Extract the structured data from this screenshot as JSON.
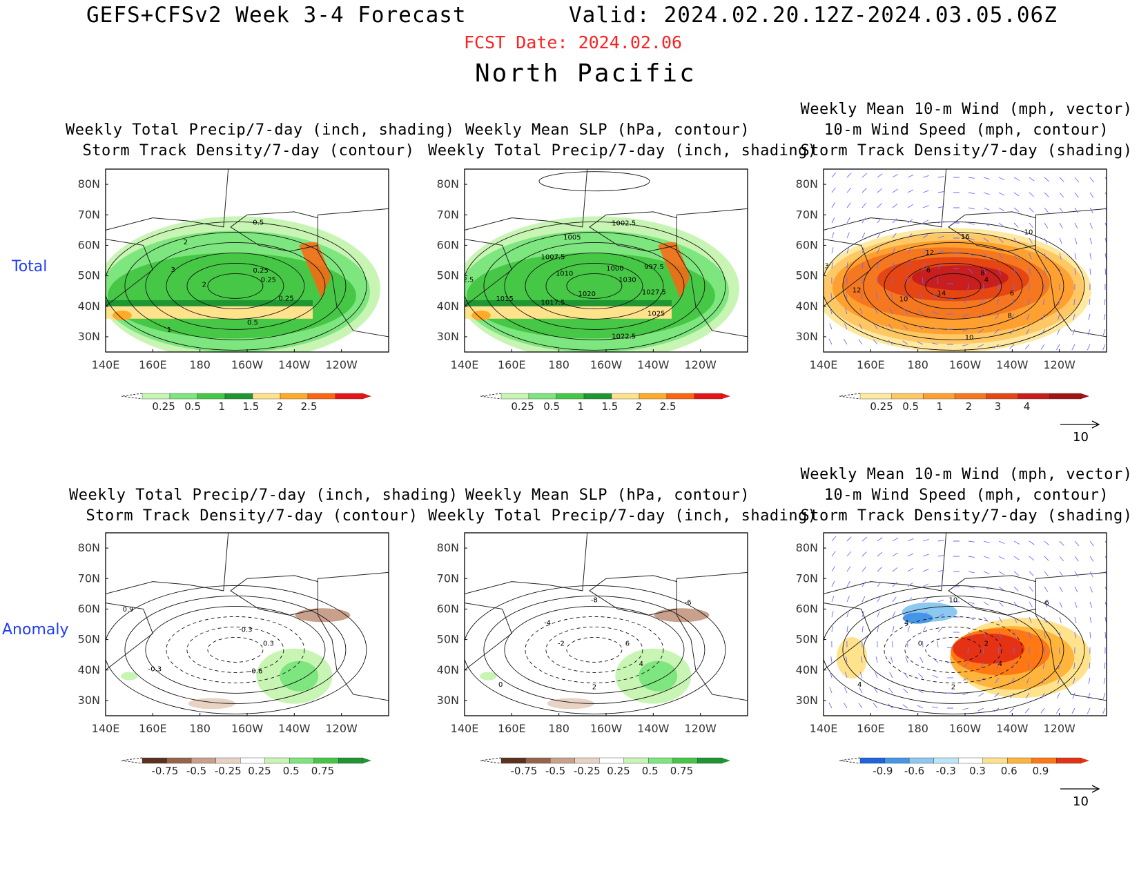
{
  "header": {
    "title": "GEFS+CFSv2 Week 3-4 Forecast",
    "valid": "Valid: 2024.02.20.12Z-2024.03.05.06Z",
    "fcst_date": "FCST Date: 2024.02.06",
    "region": "North Pacific"
  },
  "row_labels": {
    "total": "Total",
    "anomaly": "Anomaly"
  },
  "panels": {
    "t1": {
      "line1": "Weekly Total Precip/7-day (inch, shading)",
      "line2": "Storm Track Density/7-day (contour)"
    },
    "t2": {
      "line1": "Weekly Mean SLP (hPa, contour)",
      "line2": "Weekly Total Precip/7-day (inch, shading)"
    },
    "t3": {
      "line0": "Weekly Mean 10-m Wind (mph, vector)",
      "line1": "10-m Wind Speed (mph, contour)",
      "line2": "Storm Track Density/7-day (shading)"
    },
    "a1": {
      "line1": "Weekly Total Precip/7-day (inch, shading)",
      "line2": "Storm Track Density/7-day (contour)"
    },
    "a2": {
      "line1": "Weekly Mean SLP (hPa, contour)",
      "line2": "Weekly Total Precip/7-day (inch, shading)"
    },
    "a3": {
      "line0": "Weekly Mean 10-m Wind (mph, vector)",
      "line1": "10-m Wind Speed (mph, contour)",
      "line2": "Storm Track Density/7-day (shading)"
    }
  },
  "axes": {
    "lon_labels": [
      "140E",
      "160E",
      "180",
      "160W",
      "140W",
      "120W"
    ],
    "lat_labels": [
      "80N",
      "70N",
      "60N",
      "50N",
      "40N",
      "30N"
    ]
  },
  "colorbars": {
    "precip_total": {
      "labels": [
        "0.25",
        "0.5",
        "1",
        "1.5",
        "2",
        "2.5"
      ],
      "colors": [
        "#c8f5b4",
        "#7ee67e",
        "#46c846",
        "#1e9632",
        "#ffe28c",
        "#ffaa28",
        "#ff6410",
        "#e61414"
      ]
    },
    "storm_total": {
      "labels": [
        "0.25",
        "0.5",
        "1",
        "2",
        "3",
        "4"
      ],
      "colors": [
        "#ffe8a0",
        "#ffc864",
        "#ffa030",
        "#f57820",
        "#e64614",
        "#c81e1e",
        "#a01414"
      ]
    },
    "precip_anom": {
      "labels": [
        "-0.75",
        "-0.5",
        "-0.25",
        "0.25",
        "0.5",
        "0.75"
      ],
      "colors": [
        "#5a3220",
        "#96644b",
        "#c8a08c",
        "#e8d2c3",
        "#ffffff",
        "#c8f5b4",
        "#7ee67e",
        "#46c846",
        "#1e9632"
      ]
    },
    "storm_anom": {
      "labels": [
        "-0.9",
        "-0.6",
        "-0.3",
        "0.3",
        "0.6",
        "0.9"
      ],
      "colors": [
        "#1e64dc",
        "#4696e6",
        "#8cc8f0",
        "#bce6f8",
        "#ffffff",
        "#ffe28c",
        "#ffb43c",
        "#ff7814",
        "#e63214"
      ]
    }
  },
  "contour_labels": {
    "t1": [
      "0.25",
      "0.25",
      "0.5",
      "1",
      "2",
      "3",
      "2",
      "0.5",
      "0.25"
    ],
    "t2": [
      "1030",
      "1027.5",
      "1025",
      "1022.5",
      "1020",
      "1017.5",
      "1015",
      "1012.5",
      "1010",
      "1007.5",
      "1005",
      "1002.5",
      "1000",
      "997.5"
    ],
    "t3": [
      "4",
      "6",
      "8",
      "10",
      "14",
      "10",
      "12",
      "13",
      "6",
      "12",
      "16",
      "10",
      "8"
    ],
    "a1": [
      "0.3",
      "-0.6",
      "-0.3",
      "0.9",
      "-0.3"
    ],
    "a2": [
      "6",
      "4",
      "2",
      "0",
      "-2",
      "-4",
      "-8",
      "-6"
    ],
    "a3": [
      "2",
      "4",
      "2",
      "4",
      "0",
      "4",
      "10",
      "6"
    ]
  },
  "vector_scale": "10"
}
